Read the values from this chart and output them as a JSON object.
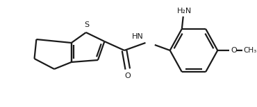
{
  "background_color": "#ffffff",
  "line_color": "#1a1a1a",
  "line_width": 1.6,
  "text_color": "#1a1a1a",
  "figsize": [
    3.7,
    1.55
  ],
  "dpi": 100,
  "S_label": "S",
  "O_label": "O",
  "HN_label": "HN",
  "NH2_label": "H₂N",
  "OMe_label": "O",
  "fontsize": 8.0
}
